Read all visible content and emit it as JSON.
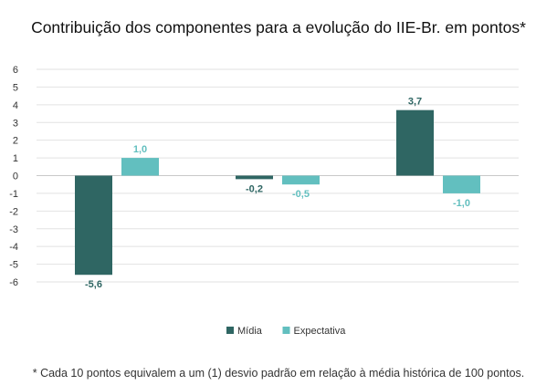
{
  "chart_data": {
    "type": "bar",
    "title": "Contribuição dos componentes para a evolução do IIE-Br. em pontos*",
    "categories": [
      "",
      "",
      ""
    ],
    "series": [
      {
        "name": "Mídia",
        "values": [
          -5.6,
          -0.2,
          3.7
        ],
        "labels": [
          "-5,6",
          "-0,2",
          "3,7"
        ],
        "color": "#2f6663"
      },
      {
        "name": "Expectativa",
        "values": [
          1.0,
          -0.5,
          -1.0
        ],
        "labels": [
          "1,0",
          "-0,5",
          "-1,0"
        ],
        "color": "#62bfbf"
      }
    ],
    "yticks": [
      6,
      5,
      4,
      3,
      2,
      1,
      0,
      -1,
      -2,
      -3,
      -4,
      -5,
      -6
    ],
    "ytick_labels": [
      "6",
      "5",
      "4",
      "3",
      "2",
      "1",
      "0",
      "-1",
      "-2",
      "-3",
      "-4",
      "-5",
      "-6"
    ],
    "ylim": [
      -6,
      6
    ],
    "xlabel": "",
    "ylabel": "",
    "grid": true,
    "legend_position": "bottom"
  },
  "footnote": "* Cada 10 pontos equivalem a um (1) desvio padrão em relação à média histórica de 100 pontos."
}
